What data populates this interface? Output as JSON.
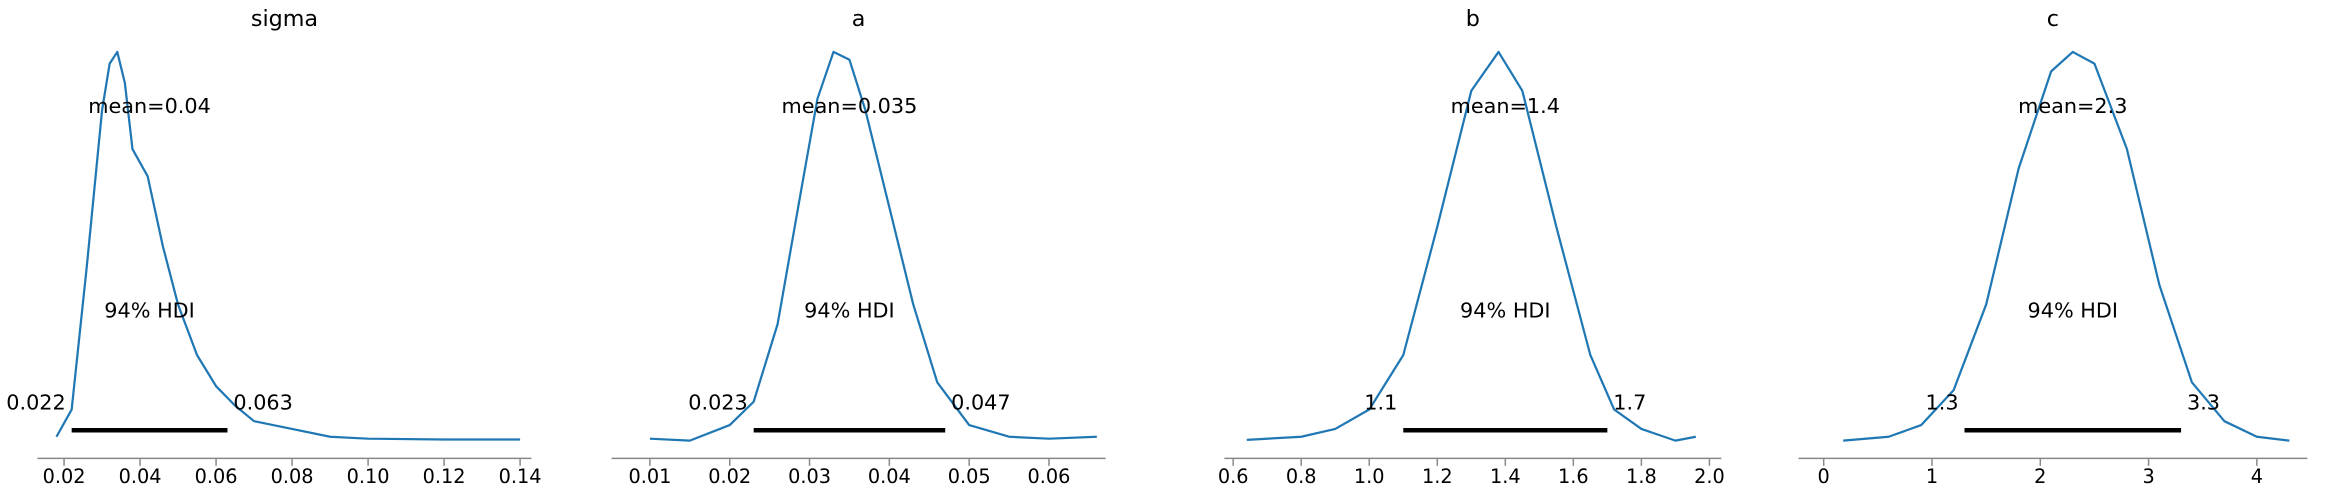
{
  "chart_data": [
    {
      "type": "density",
      "title": "sigma",
      "color": "#1f77b4",
      "x": [
        0.018,
        0.022,
        0.026,
        0.03,
        0.032,
        0.034,
        0.036,
        0.038,
        0.042,
        0.046,
        0.05,
        0.055,
        0.06,
        0.065,
        0.07,
        0.08,
        0.09,
        0.1,
        0.12,
        0.14
      ],
      "values": [
        0.01,
        0.08,
        0.45,
        0.85,
        0.97,
        1.0,
        0.92,
        0.75,
        0.68,
        0.5,
        0.35,
        0.22,
        0.14,
        0.09,
        0.05,
        0.03,
        0.01,
        0.005,
        0.003,
        0.003
      ],
      "xlim": [
        0.013,
        0.143
      ],
      "xticks": [
        0.02,
        0.04,
        0.06,
        0.08,
        {
          "value": 0.1,
          "label": "0.10"
        },
        0.12,
        0.14
      ],
      "ylim": [
        0,
        1
      ],
      "mean_label": "mean=0.04",
      "hdi_label": "94% HDI",
      "hdi": [
        0.022,
        0.063
      ]
    },
    {
      "type": "density",
      "title": "a",
      "color": "#1f77b4",
      "x": [
        0.01,
        0.015,
        0.02,
        0.023,
        0.026,
        0.029,
        0.031,
        0.033,
        0.035,
        0.037,
        0.04,
        0.043,
        0.046,
        0.05,
        0.055,
        0.06,
        0.066
      ],
      "values": [
        0.005,
        0.0,
        0.04,
        0.1,
        0.3,
        0.65,
        0.88,
        1.0,
        0.98,
        0.85,
        0.6,
        0.35,
        0.15,
        0.04,
        0.01,
        0.005,
        0.01
      ],
      "xlim": [
        0.0052,
        0.0671
      ],
      "xticks": [
        0.01,
        0.02,
        0.03,
        0.04,
        0.05,
        0.06
      ],
      "ylim": [
        0,
        1
      ],
      "mean_label": "mean=0.035",
      "hdi_label": "94% HDI",
      "hdi": [
        0.023,
        0.047
      ]
    },
    {
      "type": "density",
      "title": "b",
      "color": "#1f77b4",
      "x": [
        0.64,
        0.8,
        0.9,
        1.0,
        1.1,
        1.2,
        1.3,
        1.38,
        1.45,
        1.55,
        1.65,
        1.72,
        1.8,
        1.9,
        1.96
      ],
      "values": [
        0.002,
        0.01,
        0.03,
        0.08,
        0.22,
        0.55,
        0.9,
        1.0,
        0.9,
        0.55,
        0.22,
        0.08,
        0.03,
        0.0,
        0.01
      ],
      "xlim": [
        0.574,
        2.035
      ],
      "xticks": [
        0.6,
        0.8,
        {
          "value": 1,
          "label": "1.0"
        },
        1.2,
        1.4,
        1.6,
        1.8,
        {
          "value": 2,
          "label": "2.0"
        }
      ],
      "ylim": [
        0,
        1
      ],
      "mean_label": "mean=1.4",
      "hdi_label": "94% HDI",
      "hdi": [
        1.1,
        1.7
      ]
    },
    {
      "type": "density",
      "title": "c",
      "color": "#1f77b4",
      "x": [
        0.18,
        0.6,
        0.9,
        1.2,
        1.5,
        1.8,
        2.1,
        2.3,
        2.5,
        2.8,
        3.1,
        3.4,
        3.7,
        4.0,
        4.3
      ],
      "values": [
        0.0,
        0.01,
        0.04,
        0.13,
        0.35,
        0.7,
        0.95,
        1.0,
        0.97,
        0.75,
        0.4,
        0.15,
        0.05,
        0.01,
        0.0
      ],
      "xlim": [
        -0.233,
        4.466
      ],
      "xticks": [
        0,
        1,
        2,
        3,
        4
      ],
      "ylim": [
        0,
        1
      ],
      "mean_label": "mean=2.3",
      "hdi_label": "94% HDI",
      "hdi": [
        1.3,
        3.3
      ]
    }
  ]
}
